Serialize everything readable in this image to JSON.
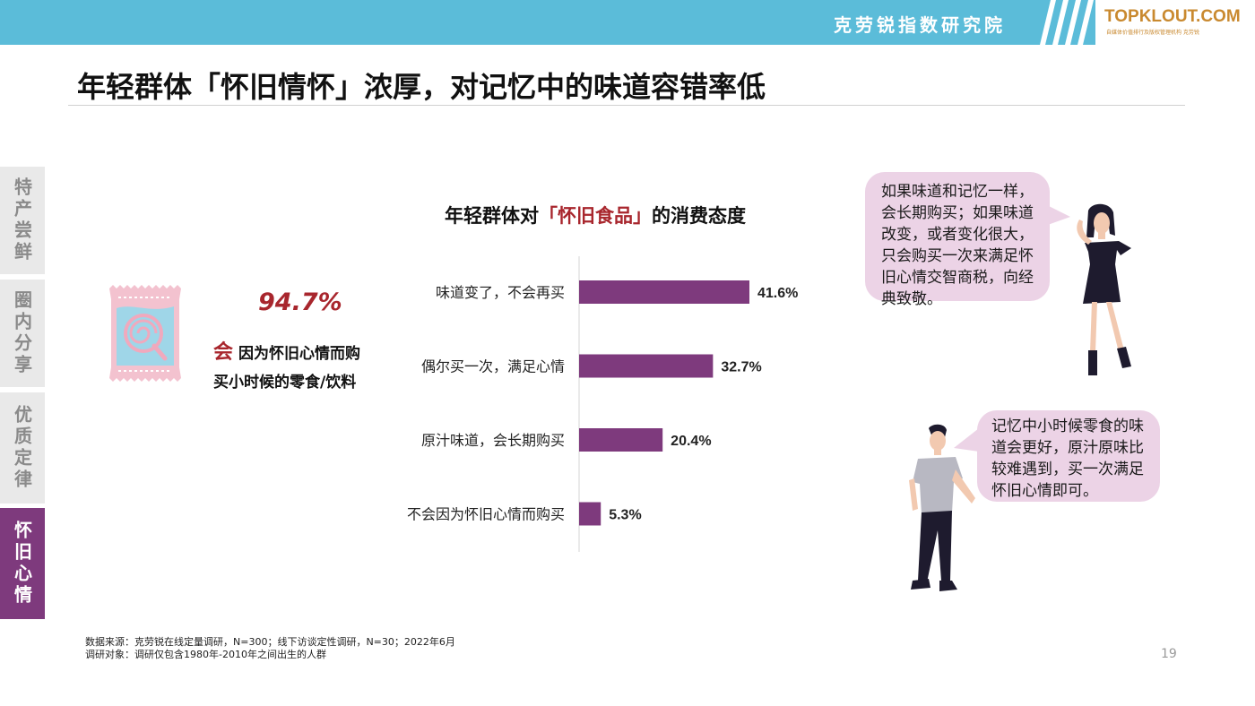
{
  "header": {
    "org": "克劳锐指数研究院",
    "logo": "TOPKLOUT.COM",
    "logo_sub": "自媒体价值排行及版权管理机构 克劳锐"
  },
  "title": "年轻群体「怀旧情怀」浓厚，对记忆中的味道容错率低",
  "tabs": [
    {
      "label": "特产尝鲜"
    },
    {
      "label": "圈内分享"
    },
    {
      "label": "优质定律"
    },
    {
      "label": "怀旧心情"
    }
  ],
  "stat": {
    "value": "94.7%",
    "strong": "会",
    "line1_rest": "因为怀旧心情而购",
    "line2": "买小时候的零食/饮料"
  },
  "chart_data": {
    "type": "bar",
    "orientation": "horizontal",
    "title_prefix": "年轻群体对",
    "title_highlight": "「怀旧食品」",
    "title_suffix": "的消费态度",
    "categories": [
      "味道变了，不会再买",
      "偶尔买一次，满足心情",
      "原汁味道，会长期购买",
      "不会因为怀旧心情而购买"
    ],
    "values": [
      41.6,
      32.7,
      20.4,
      5.3
    ],
    "value_labels": [
      "41.6%",
      "32.7%",
      "20.4%",
      "5.3%"
    ],
    "unit": "%",
    "xlim": [
      0,
      50
    ],
    "bar_color": "#7e3a7d",
    "grid": false,
    "legend": "none"
  },
  "quotes": [
    {
      "text": "如果味道和记忆一样，会长期购买；如果味道改变，或者变化很大，只会购买一次来满足怀旧心情交智商税，向经典致敬。"
    },
    {
      "text": "记忆中小时候零食的味道会更好，原汁原味比较难遇到，买一次满足怀旧心情即可。"
    }
  ],
  "footer": {
    "source": "数据来源：克劳锐在线定量调研，N=300；线下访谈定性调研，N=30；2022年6月",
    "subjects": "调研对象：调研仅包含1980年-2010年之间出生的人群",
    "page": "19"
  },
  "colors": {
    "banner": "#5bbcd9",
    "accent": "#7e3a7d",
    "highlight_red": "#a8262d",
    "bubble": "#ecd3e6",
    "logo": "#c9892f"
  },
  "icons": {
    "bag": "candy-bag-icon",
    "figure1": "woman-figure",
    "figure2": "man-figure"
  }
}
